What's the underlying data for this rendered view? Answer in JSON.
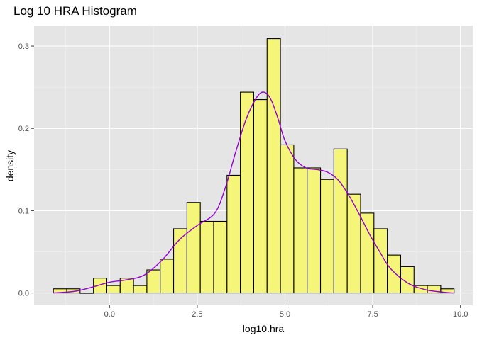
{
  "chart_data": {
    "type": "bar",
    "title": "Log 10 HRA Histogram",
    "xlabel": "log10.hra",
    "ylabel": "density",
    "xlim": [
      -2.15,
      10.35
    ],
    "ylim": [
      -0.015,
      0.325
    ],
    "x_ticks": [
      0.0,
      2.5,
      5.0,
      7.5,
      10.0
    ],
    "x_tick_labels": [
      "0.0",
      "2.5",
      "5.0",
      "7.5",
      "10.0"
    ],
    "y_ticks": [
      0.0,
      0.1,
      0.2,
      0.3
    ],
    "y_tick_labels": [
      "0.0",
      "0.1",
      "0.2",
      "0.3"
    ],
    "bin_width": 0.3806,
    "bins": [
      {
        "x0": -1.6,
        "x1": -1.2194,
        "density": 0.005
      },
      {
        "x0": -1.2194,
        "x1": -0.8388,
        "density": 0.005
      },
      {
        "x0": -0.8388,
        "x1": -0.4582,
        "density": 0.0
      },
      {
        "x0": -0.4582,
        "x1": -0.0776,
        "density": 0.018
      },
      {
        "x0": -0.0776,
        "x1": 0.303,
        "density": 0.009
      },
      {
        "x0": 0.303,
        "x1": 0.6836,
        "density": 0.018
      },
      {
        "x0": 0.6836,
        "x1": 1.0642,
        "density": 0.009
      },
      {
        "x0": 1.0642,
        "x1": 1.4448,
        "density": 0.028
      },
      {
        "x0": 1.4448,
        "x1": 1.8254,
        "density": 0.041
      },
      {
        "x0": 1.8254,
        "x1": 2.206,
        "density": 0.078
      },
      {
        "x0": 2.206,
        "x1": 2.5866,
        "density": 0.11
      },
      {
        "x0": 2.5866,
        "x1": 2.9672,
        "density": 0.087
      },
      {
        "x0": 2.9672,
        "x1": 3.3478,
        "density": 0.087
      },
      {
        "x0": 3.3478,
        "x1": 3.7284,
        "density": 0.143
      },
      {
        "x0": 3.7284,
        "x1": 4.109,
        "density": 0.244
      },
      {
        "x0": 4.109,
        "x1": 4.4896,
        "density": 0.235
      },
      {
        "x0": 4.4896,
        "x1": 4.8702,
        "density": 0.309
      },
      {
        "x0": 4.8702,
        "x1": 5.2508,
        "density": 0.18
      },
      {
        "x0": 5.2508,
        "x1": 5.6314,
        "density": 0.152
      },
      {
        "x0": 5.6314,
        "x1": 6.012,
        "density": 0.152
      },
      {
        "x0": 6.012,
        "x1": 6.3926,
        "density": 0.138
      },
      {
        "x0": 6.3926,
        "x1": 6.7732,
        "density": 0.175
      },
      {
        "x0": 6.7732,
        "x1": 7.1538,
        "density": 0.12
      },
      {
        "x0": 7.1538,
        "x1": 7.5344,
        "density": 0.097
      },
      {
        "x0": 7.5344,
        "x1": 7.915,
        "density": 0.078
      },
      {
        "x0": 7.915,
        "x1": 8.2956,
        "density": 0.046
      },
      {
        "x0": 8.2956,
        "x1": 8.6762,
        "density": 0.032
      },
      {
        "x0": 8.6762,
        "x1": 9.0568,
        "density": 0.009
      },
      {
        "x0": 9.0568,
        "x1": 9.4374,
        "density": 0.009
      },
      {
        "x0": 9.4374,
        "x1": 9.818,
        "density": 0.005
      }
    ],
    "density_curve": {
      "x": [
        -1.6,
        -1.0,
        -0.5,
        0.0,
        0.5,
        1.0,
        1.5,
        2.0,
        2.5,
        3.0,
        3.3,
        3.6,
        3.9,
        4.2,
        4.4,
        4.6,
        4.8,
        5.0,
        5.3,
        5.6,
        5.9,
        6.2,
        6.5,
        6.8,
        7.1,
        7.4,
        7.7,
        8.0,
        8.5,
        9.0,
        9.5,
        9.8
      ],
      "y": [
        0.0,
        0.002,
        0.007,
        0.013,
        0.016,
        0.022,
        0.04,
        0.065,
        0.082,
        0.097,
        0.128,
        0.172,
        0.212,
        0.238,
        0.244,
        0.235,
        0.212,
        0.185,
        0.162,
        0.152,
        0.15,
        0.147,
        0.138,
        0.12,
        0.097,
        0.072,
        0.05,
        0.03,
        0.012,
        0.004,
        0.001,
        0.0
      ]
    },
    "colors": {
      "panel_background": "#e5e5e5",
      "grid_major": "#ffffff",
      "grid_minor": "#f2f2f2",
      "bar_fill": "#f5f57a",
      "bar_stroke": "#000000",
      "density_line": "#9400d3"
    },
    "grid": true,
    "legend": "none"
  }
}
